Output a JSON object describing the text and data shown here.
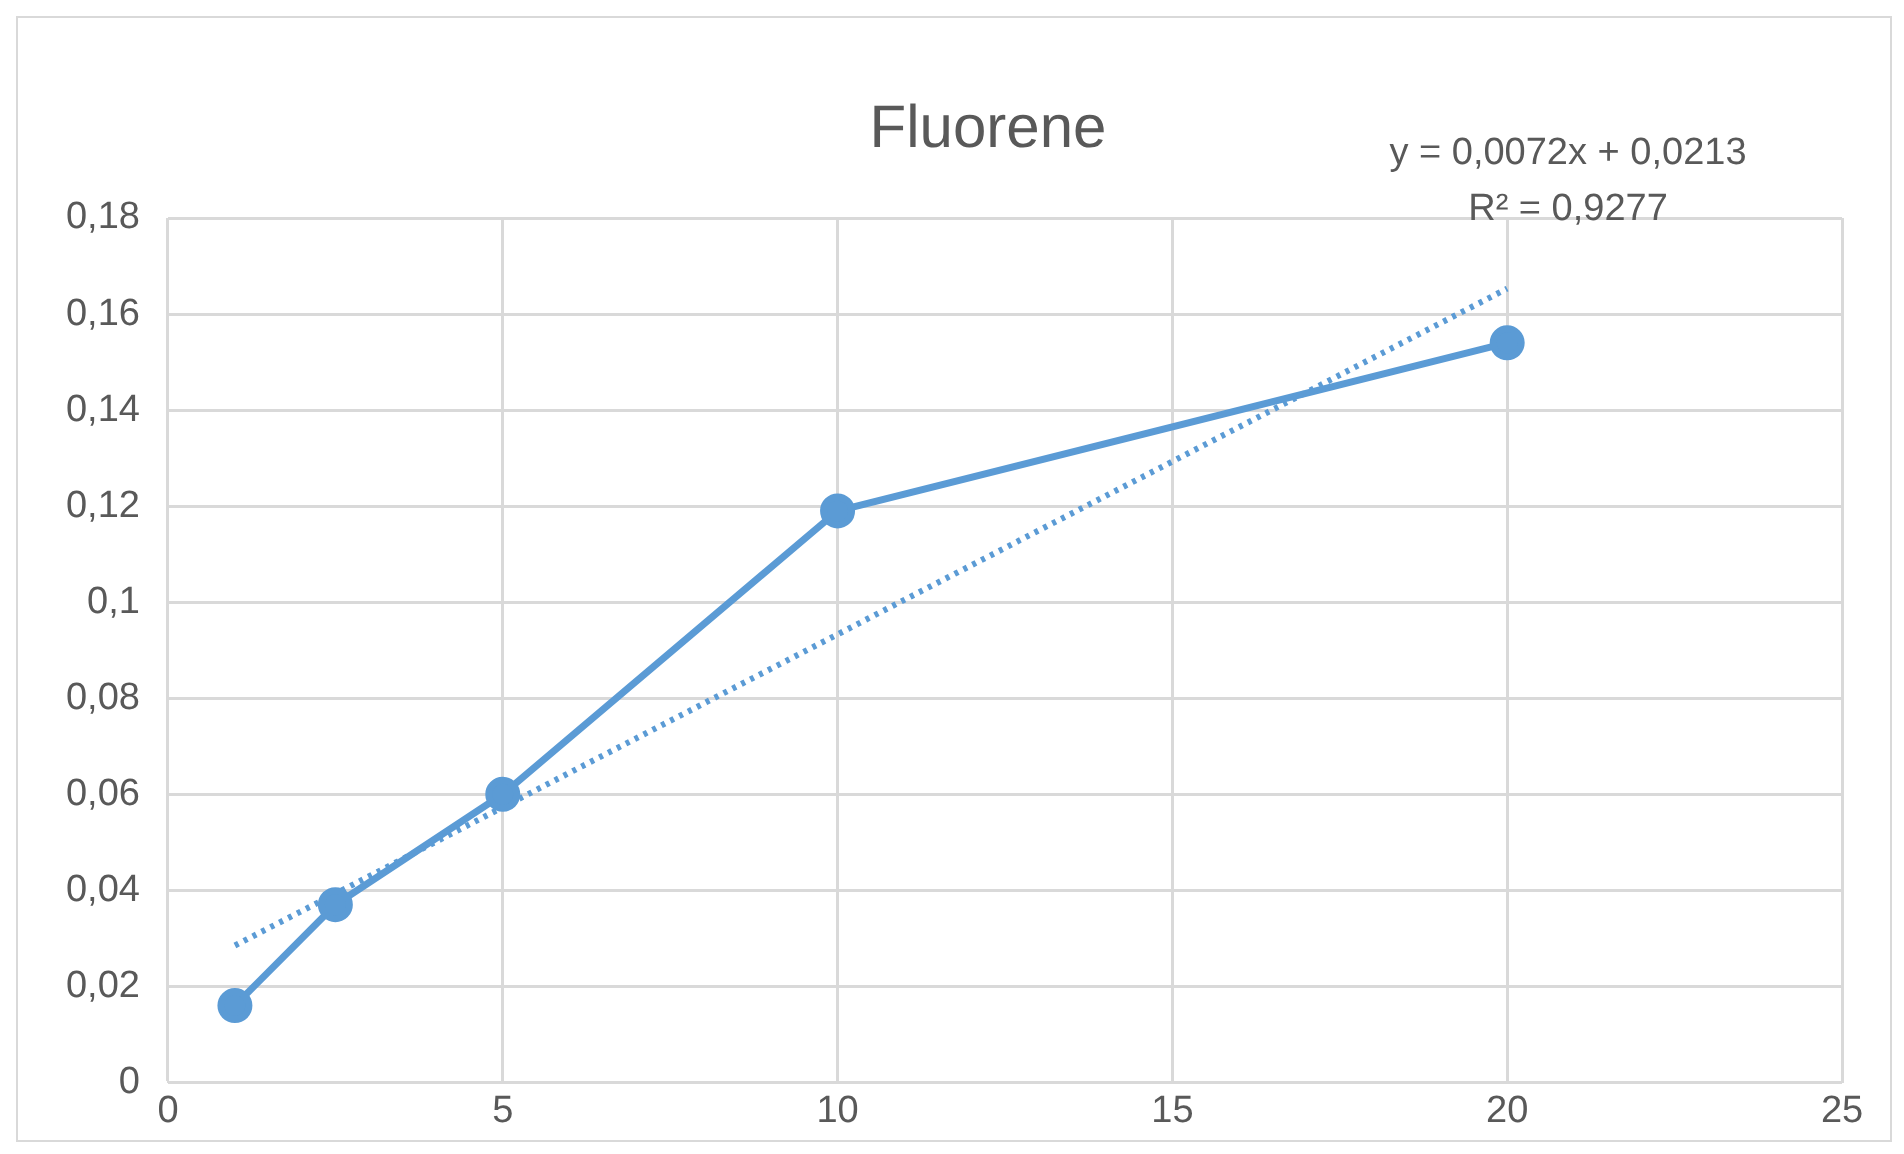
{
  "chart_data": {
    "type": "line",
    "title": "Fluorene",
    "x": [
      1,
      2.5,
      5,
      10,
      20
    ],
    "series": [
      {
        "type": "line",
        "color": "#5b9bd5",
        "values": [
          0.016,
          0.037,
          0.06,
          0.119,
          0.154
        ],
        "marker": "circle",
        "line_style": "solid"
      },
      {
        "type": "line",
        "color": "#5b9bd5",
        "x": [
          1,
          20
        ],
        "values": [
          0.0285,
          0.1653
        ],
        "marker": "none",
        "line_style": "dotted"
      }
    ],
    "xlim": [
      0,
      25
    ],
    "xticks": [
      0,
      5,
      10,
      15,
      20,
      25
    ],
    "ylim": [
      0,
      0.18
    ],
    "yticks": [
      0,
      {
        "value": 0.02,
        "label": "0,02"
      },
      {
        "value": 0.04,
        "label": "0,04"
      },
      {
        "value": 0.06,
        "label": "0,06"
      },
      {
        "value": 0.08,
        "label": "0,08"
      },
      {
        "value": 0.1,
        "label": "0,1"
      },
      {
        "value": 0.12,
        "label": "0,12"
      },
      {
        "value": 0.14,
        "label": "0,14"
      },
      {
        "value": 0.16,
        "label": "0,16"
      },
      {
        "value": 0.18,
        "label": "0,18"
      }
    ],
    "grid": true,
    "legend": false,
    "annotations": [
      "y = 0,0072x + 0,0213",
      "R² = 0,9277"
    ]
  }
}
